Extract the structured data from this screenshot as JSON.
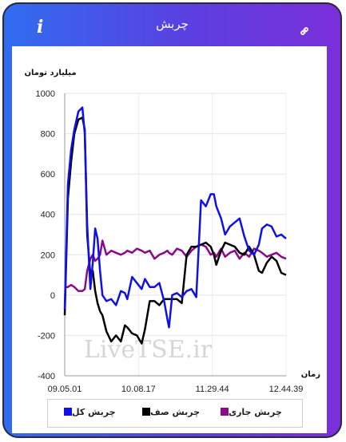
{
  "header": {
    "title": "چربش",
    "info_glyph": "i",
    "link_icon": "link-icon"
  },
  "colors": {
    "total": "#1010e8",
    "queue": "#000000",
    "current": "#8a0a8a",
    "header_start": "#2f6df0",
    "header_end": "#7b2fd9"
  },
  "watermark": "LiveTSE.ir",
  "chart_data": {
    "type": "line",
    "ylabel": "میلیارد تومان",
    "xlabel": "زمان",
    "ylim": [
      -400,
      1000
    ],
    "yticks": [
      1000,
      800,
      600,
      400,
      200,
      0,
      -200,
      -400
    ],
    "xtick_labels": [
      "09.05.01",
      "10.08.17",
      "11.29.44",
      "12.44.39"
    ],
    "x": [
      0,
      4,
      8,
      12,
      17,
      22,
      25,
      28,
      32,
      35,
      38,
      41,
      44,
      47,
      52,
      58,
      64,
      70,
      75,
      78,
      84,
      90,
      96,
      100,
      106,
      112,
      118,
      124,
      128,
      130,
      134,
      140,
      146,
      152,
      158,
      164,
      170,
      176,
      182,
      186,
      189,
      195,
      200,
      206,
      212,
      218,
      224,
      230,
      236,
      242,
      246,
      252,
      258,
      264,
      270,
      276
    ],
    "series": [
      {
        "name": "چربش کل",
        "values": [
          -70,
          550,
          720,
          820,
          910,
          930,
          800,
          350,
          30,
          160,
          330,
          280,
          120,
          0,
          -30,
          -20,
          -50,
          20,
          10,
          -20,
          90,
          60,
          30,
          80,
          40,
          40,
          60,
          -30,
          -120,
          -160,
          0,
          10,
          -10,
          20,
          30,
          -10,
          470,
          440,
          500,
          500,
          440,
          380,
          300,
          340,
          360,
          380,
          290,
          220,
          200,
          250,
          330,
          350,
          340,
          290,
          300,
          280
        ]
      },
      {
        "name": "چربش صف",
        "values": [
          -100,
          480,
          660,
          800,
          870,
          880,
          820,
          300,
          100,
          120,
          20,
          -40,
          -80,
          -100,
          -180,
          -230,
          -200,
          -230,
          -150,
          -160,
          -190,
          -200,
          -240,
          -170,
          -30,
          -30,
          -50,
          -20,
          -20,
          -20,
          -20,
          -20,
          -40,
          200,
          240,
          240,
          250,
          260,
          240,
          200,
          150,
          220,
          260,
          250,
          240,
          210,
          200,
          240,
          200,
          120,
          110,
          160,
          190,
          170,
          110,
          100
        ]
      },
      {
        "name": "چربش جاری",
        "values": [
          40,
          40,
          50,
          40,
          20,
          20,
          30,
          120,
          180,
          200,
          170,
          180,
          200,
          270,
          200,
          220,
          210,
          200,
          210,
          220,
          210,
          230,
          220,
          210,
          220,
          180,
          200,
          210,
          220,
          210,
          200,
          230,
          220,
          190,
          220,
          240,
          250,
          240,
          200,
          210,
          190,
          230,
          190,
          210,
          220,
          180,
          210,
          190,
          230,
          220,
          210,
          190,
          200,
          210,
          190,
          180
        ]
      }
    ]
  }
}
